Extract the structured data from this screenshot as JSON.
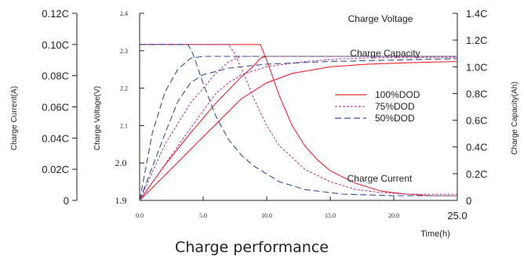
{
  "chart_data": {
    "type": "line",
    "title": "Charge performance",
    "xlabel": "Time(h)",
    "x_ticks": [
      "0.0",
      "5.0",
      "10.0",
      "15.0",
      "20.0",
      "25.0"
    ],
    "xlim": [
      0,
      25
    ],
    "axes": {
      "current": {
        "label": "Charge Current(A)",
        "ticks": [
          "0",
          "0.02C",
          "0.04C",
          "0.06C",
          "0.08C",
          "0.10C",
          "0.12C"
        ],
        "range": [
          0,
          0.12
        ]
      },
      "voltage": {
        "label": "Charge Voltage(V)",
        "ticks": [
          "1.9",
          "2.0",
          "2.1",
          "2.2",
          "2.3",
          "2.4"
        ],
        "range": [
          1.9,
          2.4
        ]
      },
      "capacity": {
        "label": "Charge Capacity(Ah)",
        "ticks": [
          "0",
          "0.2C",
          "0.4C",
          "0.6C",
          "0.8C",
          "1.0C",
          "1.2C",
          "1.4C"
        ],
        "range": [
          0,
          1.4
        ]
      }
    },
    "curve_labels": {
      "voltage": "Charge Voltage",
      "capacity": "Charge Capacity",
      "current": "Charge Current"
    },
    "legend": {
      "placement": "right-center",
      "entries": [
        {
          "name": "100%DOD",
          "color": "#e8262d",
          "dash": "solid"
        },
        {
          "name": "75%DOD",
          "color": "#b1449a",
          "dash": "dotted"
        },
        {
          "name": "50%DOD",
          "color": "#3a4d8f",
          "dash": "dashed"
        }
      ]
    },
    "series": [
      {
        "name": "100%DOD",
        "quantity": "Charge Voltage",
        "axis": "voltage",
        "x": [
          0,
          2,
          4,
          6,
          8,
          9,
          9.5,
          10,
          25
        ],
        "y": [
          1.9,
          1.995,
          2.08,
          2.16,
          2.23,
          2.26,
          2.28,
          2.285,
          2.285
        ]
      },
      {
        "name": "75%DOD",
        "quantity": "Charge Voltage",
        "axis": "voltage",
        "x": [
          0,
          2,
          4,
          5,
          6,
          7,
          8,
          25
        ],
        "y": [
          1.9,
          2.05,
          2.16,
          2.2,
          2.24,
          2.27,
          2.285,
          2.285
        ]
      },
      {
        "name": "50%DOD",
        "quantity": "Charge Voltage",
        "axis": "voltage",
        "x": [
          0,
          1,
          2,
          3,
          4,
          5,
          25
        ],
        "y": [
          1.9,
          2.08,
          2.19,
          2.25,
          2.28,
          2.285,
          2.285
        ]
      },
      {
        "name": "100%DOD",
        "quantity": "Charge Capacity",
        "axis": "capacity",
        "x": [
          0,
          2,
          4,
          6,
          8,
          10,
          12,
          15,
          18,
          21,
          25
        ],
        "y": [
          0,
          0.19,
          0.38,
          0.57,
          0.76,
          0.88,
          0.95,
          1.0,
          1.02,
          1.03,
          1.04
        ]
      },
      {
        "name": "75%DOD",
        "quantity": "Charge Capacity",
        "axis": "capacity",
        "x": [
          0,
          2,
          4,
          6,
          7,
          8,
          10,
          13,
          16,
          20,
          25
        ],
        "y": [
          0,
          0.27,
          0.54,
          0.8,
          0.88,
          0.94,
          1.0,
          1.04,
          1.06,
          1.07,
          1.07
        ]
      },
      {
        "name": "50%DOD",
        "quantity": "Charge Capacity",
        "axis": "capacity",
        "x": [
          0,
          1,
          2,
          3,
          4,
          5,
          7,
          10,
          15,
          20,
          25
        ],
        "y": [
          0,
          0.25,
          0.5,
          0.74,
          0.88,
          0.94,
          0.99,
          1.02,
          1.04,
          1.05,
          1.06
        ]
      },
      {
        "name": "100%DOD",
        "quantity": "Charge Current",
        "axis": "current",
        "x": [
          0,
          9.5,
          10,
          11,
          12,
          13,
          14,
          15,
          17,
          19,
          21,
          23,
          25
        ],
        "y": [
          0.1,
          0.1,
          0.09,
          0.067,
          0.048,
          0.035,
          0.026,
          0.019,
          0.011,
          0.006,
          0.004,
          0.003,
          0.003
        ]
      },
      {
        "name": "75%DOD",
        "quantity": "Charge Current",
        "axis": "current",
        "x": [
          0,
          7,
          7.5,
          8,
          9,
          10,
          11,
          13,
          15,
          17,
          19,
          21,
          25
        ],
        "y": [
          0.1,
          0.1,
          0.094,
          0.085,
          0.065,
          0.048,
          0.035,
          0.02,
          0.012,
          0.007,
          0.005,
          0.004,
          0.004
        ]
      },
      {
        "name": "50%DOD",
        "quantity": "Charge Current",
        "axis": "current",
        "x": [
          0,
          3.8,
          4.2,
          5,
          6,
          7,
          8,
          9,
          11,
          13,
          16,
          20,
          25
        ],
        "y": [
          0.1,
          0.1,
          0.094,
          0.075,
          0.054,
          0.039,
          0.029,
          0.022,
          0.012,
          0.007,
          0.004,
          0.003,
          0.003
        ]
      }
    ]
  }
}
